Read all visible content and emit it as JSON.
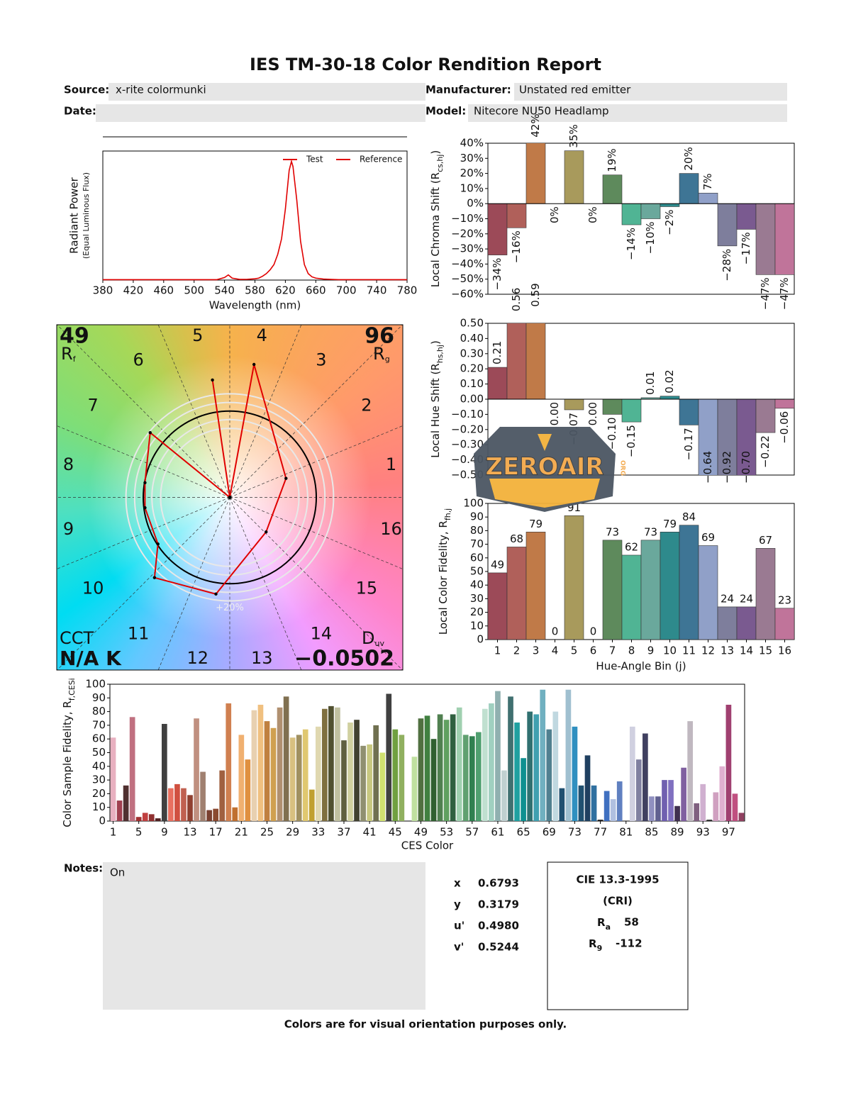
{
  "header": {
    "title": "IES TM-30-18 Color Rendition Report",
    "source_label": "Source:",
    "source": "x-rite colormunki",
    "manufacturer_label": "Manufacturer:",
    "manufacturer": "Unstated red emitter",
    "date_label": "Date:",
    "model_label": "Model:",
    "model": "Nitecore NU50 Headlamp"
  },
  "chart_data": [
    {
      "type": "line",
      "xlabel": "Wavelength (nm)",
      "ylabel": "Radiant Power",
      "ylabel2": "(Equal Luminous Flux)",
      "legend": "upper right",
      "x": [
        380,
        390,
        400,
        410,
        420,
        430,
        440,
        450,
        460,
        470,
        480,
        490,
        500,
        510,
        520,
        530,
        540,
        545,
        550,
        560,
        570,
        580,
        585,
        590,
        595,
        600,
        605,
        610,
        615,
        620,
        625,
        628,
        630,
        635,
        640,
        645,
        650,
        655,
        660,
        670,
        680,
        690,
        700,
        710,
        720,
        730,
        740,
        750,
        760,
        770,
        780
      ],
      "series": [
        {
          "name": "Test",
          "color": "#e00000",
          "values": [
            0.003,
            0.003,
            0.003,
            0.003,
            0.003,
            0.003,
            0.003,
            0.003,
            0.003,
            0.003,
            0.003,
            0.003,
            0.003,
            0.003,
            0.003,
            0.003,
            0.02,
            0.04,
            0.015,
            0.005,
            0.006,
            0.01,
            0.015,
            0.03,
            0.05,
            0.08,
            0.12,
            0.2,
            0.32,
            0.55,
            0.85,
            0.92,
            0.88,
            0.62,
            0.3,
            0.12,
            0.05,
            0.025,
            0.015,
            0.008,
            0.005,
            0.003,
            0.003,
            0.003,
            0.003,
            0.003,
            0.003,
            0.003,
            0.003,
            0.003,
            0.003
          ]
        },
        {
          "name": "Reference",
          "color": "#e00000",
          "values": [
            null,
            null,
            null,
            null,
            null,
            null,
            null,
            null,
            null,
            null,
            null,
            null,
            null,
            null,
            null,
            null,
            null,
            null,
            null,
            null,
            null,
            null,
            null,
            null,
            null,
            null,
            null,
            null,
            null,
            null,
            null,
            null,
            null,
            null,
            null,
            null,
            null,
            null,
            null,
            null,
            null,
            null,
            null,
            null,
            null,
            null,
            null,
            null,
            null,
            null,
            null
          ]
        }
      ],
      "xlim": [
        380,
        780
      ],
      "xticks": [
        380,
        420,
        460,
        500,
        540,
        580,
        620,
        660,
        700,
        740,
        780
      ],
      "ylim": [
        0,
        1
      ]
    },
    {
      "type": "vector",
      "rf": 49,
      "rf_label": "R",
      "rf_sub": "f",
      "rg": 96,
      "rg_label": "R",
      "rg_sub": "g",
      "cct_label": "CCT",
      "cct": "N/A K",
      "duv_label": "D",
      "duv_sub": "uv",
      "duv": {
        "value": -0.0502,
        "label": "−0.0502"
      },
      "circle_label": "+20%",
      "bins": [
        "1",
        "2",
        "3",
        "4",
        "5",
        "6",
        "7",
        "8",
        "9",
        "10",
        "11",
        "12",
        "13",
        "14",
        "15",
        "16"
      ],
      "x": [
        0,
        -0.2,
        0,
        0.28,
        0.65,
        0.42,
        -0.16,
        -0.87,
        -0.83,
        -0.98,
        -0.98,
        -0.92,
        0
      ],
      "y": [
        0,
        1.36,
        0,
        1.54,
        0.22,
        -0.4,
        -1.12,
        -0.93,
        -0.54,
        -0.12,
        0.17,
        0.75,
        0
      ],
      "color": "#e00000",
      "xlim": [
        -2,
        2
      ],
      "ylim": [
        -2,
        2
      ]
    },
    {
      "type": "bar",
      "ylabel": "Local Chroma Shift (R",
      "ylabel_sub": "cs,hj",
      "ylabel_end": ")",
      "values": [
        -34,
        -16,
        42,
        0,
        35,
        0,
        19,
        -14,
        -10,
        -2,
        20,
        7,
        -28,
        -17,
        -47,
        -47
      ],
      "value_labels": [
        "−34%",
        "−16%",
        "42%",
        "0%",
        "35%",
        "0%",
        "19%",
        "−14%",
        "−10%",
        "−2%",
        "20%",
        "7%",
        "−28%",
        "−17%",
        "−47%",
        "−47%"
      ],
      "colors": [
        "#9c4a58",
        "#b0605a",
        "#c07a48",
        "#c09a52",
        "#a89a5c",
        "#8a9a5a",
        "#5e8a5c",
        "#50b494",
        "#6aa89c",
        "#2e8a8c",
        "#3e7595",
        "#90a0c8",
        "#7e7e9c",
        "#7a5a90",
        "#9a7a92",
        "#c0749a"
      ],
      "ylim": [
        -60,
        40
      ],
      "yticks": [
        {
          "value": 40,
          "label": "40%"
        },
        {
          "value": 30,
          "label": "30%"
        },
        {
          "value": 20,
          "label": "20%"
        },
        {
          "value": 10,
          "label": "10%"
        },
        {
          "value": 0,
          "label": "0%"
        },
        {
          "value": -10,
          "label": "−10%"
        },
        {
          "value": -20,
          "label": "−20%"
        },
        {
          "value": -30,
          "label": "−30%"
        },
        {
          "value": -40,
          "label": "−40%"
        },
        {
          "value": -50,
          "label": "−50%"
        },
        {
          "value": -60,
          "label": "−60%"
        }
      ]
    },
    {
      "type": "bar",
      "ylabel": "Local Hue Shift (R",
      "ylabel_sub": "hs,hj",
      "ylabel_end": ")",
      "values": [
        0.21,
        0.56,
        0.59,
        0,
        -0.07,
        0,
        -0.1,
        -0.15,
        0.01,
        0.02,
        -0.17,
        -0.64,
        -0.92,
        -0.7,
        -0.22,
        -0.06
      ],
      "value_labels": [
        "0.21",
        "0.56",
        "0.59",
        "0.00",
        "−0.07",
        "0.00",
        "−0.10",
        "−0.15",
        "0.01",
        "0.02",
        "−0.17",
        "−0.64",
        "−0.92",
        "−0.70",
        "−0.22",
        "−0.06"
      ],
      "colors": [
        "#9c4a58",
        "#b0605a",
        "#c07a48",
        "#c09a52",
        "#a89a5c",
        "#8a9a5a",
        "#5e8a5c",
        "#50b494",
        "#6aa89c",
        "#2e8a8c",
        "#3e7595",
        "#90a0c8",
        "#7e7e9c",
        "#7a5a90",
        "#9a7a92",
        "#c0749a"
      ],
      "ylim": [
        -0.5,
        0.5
      ],
      "yticks": [
        {
          "value": 0.5,
          "label": "0.50"
        },
        {
          "value": 0.4,
          "label": "0.40"
        },
        {
          "value": 0.3,
          "label": "0.30"
        },
        {
          "value": 0.2,
          "label": "0.20"
        },
        {
          "value": 0.1,
          "label": "0.10"
        },
        {
          "value": 0,
          "label": "0.00"
        },
        {
          "value": -0.1,
          "label": "−0.10"
        },
        {
          "value": -0.2,
          "label": "−0.20"
        },
        {
          "value": -0.3,
          "label": "−0.30"
        },
        {
          "value": -0.4,
          "label": "−0.40"
        },
        {
          "value": -0.5,
          "label": "−0.50"
        }
      ]
    },
    {
      "type": "bar",
      "ylabel": "Local Color Fidelity, R",
      "ylabel_sub": "fh,j",
      "xlabel": "Hue-Angle Bin (j)",
      "categories": [
        "1",
        "2",
        "3",
        "4",
        "5",
        "6",
        "7",
        "8",
        "9",
        "10",
        "11",
        "12",
        "13",
        "14",
        "15",
        "16"
      ],
      "values": [
        49,
        68,
        79,
        0,
        91,
        0,
        73,
        62,
        73,
        79,
        84,
        69,
        24,
        24,
        67,
        23
      ],
      "colors": [
        "#9c4a58",
        "#b0605a",
        "#c07a48",
        "#c09a52",
        "#a89a5c",
        "#8a9a5a",
        "#5e8a5c",
        "#50b494",
        "#6aa89c",
        "#2e8a8c",
        "#3e7595",
        "#90a0c8",
        "#7e7e9c",
        "#7a5a90",
        "#9a7a92",
        "#c0749a"
      ],
      "ylim": [
        0,
        100
      ],
      "yticks": [
        0,
        10,
        20,
        30,
        40,
        50,
        60,
        70,
        80,
        90,
        100
      ]
    },
    {
      "type": "bar",
      "ylabel": "Color Sample Fidelity, R",
      "ylabel_sub": "f,CESi",
      "xlabel": "CES Color",
      "categories": [
        "1",
        null,
        null,
        null,
        "5",
        null,
        null,
        null,
        "9",
        null,
        null,
        null,
        "13",
        null,
        null,
        null,
        "17",
        null,
        null,
        null,
        "21",
        null,
        null,
        null,
        "25",
        null,
        null,
        null,
        "29",
        null,
        null,
        null,
        "33",
        null,
        null,
        null,
        "37",
        null,
        null,
        null,
        "41",
        null,
        null,
        null,
        "45",
        null,
        null,
        null,
        "49",
        null,
        null,
        null,
        "53",
        null,
        null,
        null,
        "57",
        null,
        null,
        null,
        "61",
        null,
        null,
        null,
        "65",
        null,
        null,
        null,
        "69",
        null,
        null,
        null,
        "73",
        null,
        null,
        null,
        "77",
        null,
        null,
        null,
        "81",
        null,
        null,
        null,
        "85",
        null,
        null,
        null,
        "89",
        null,
        null,
        null,
        "93",
        null,
        null,
        null,
        "97",
        null,
        null
      ],
      "values": [
        61,
        15,
        26,
        76,
        3,
        6,
        5,
        2,
        71,
        24,
        27,
        24,
        19,
        75,
        36,
        8,
        9,
        37,
        86,
        10,
        63,
        45,
        81,
        85,
        73,
        68,
        83,
        91,
        61,
        63,
        67,
        23,
        69,
        82,
        84,
        83,
        59,
        72,
        74,
        55,
        56,
        70,
        50,
        93,
        67,
        63,
        0,
        47,
        75,
        77,
        60,
        78,
        74,
        78,
        83,
        63,
        62,
        65,
        82,
        86,
        95,
        37,
        91,
        72,
        46,
        80,
        78,
        96,
        67,
        80,
        24,
        96,
        69,
        26,
        48,
        26,
        1,
        22,
        16,
        29,
        0,
        69,
        45,
        64,
        18,
        18,
        30,
        30,
        11,
        39,
        73,
        13,
        27,
        1,
        21,
        40,
        85,
        20,
        6
      ],
      "colors": [
        "#e8b0c0",
        "#a04050",
        "#503030",
        "#c07080",
        "#a03030",
        "#c04040",
        "#903030",
        "#502020",
        "#404040",
        "#e87060",
        "#d05040",
        "#c06050",
        "#904030",
        "#c09080",
        "#a08070",
        "#7a4030",
        "#8a4a30",
        "#a06040",
        "#d08050",
        "#c07030",
        "#f0b070",
        "#e09040",
        "#e8d0b0",
        "#f0c080",
        "#c08040",
        "#d0a050",
        "#b09070",
        "#807050",
        "#d8c080",
        "#a09060",
        "#e0c870",
        "#c0a030",
        "#e0d8b0",
        "#807040",
        "#505030",
        "#c0c0a0",
        "#606040",
        "#d0d0a0",
        "#404030",
        "#909070",
        "#c8c880",
        "#707050",
        "#d0e070",
        "#404040",
        "#70a040",
        "#90b060",
        "#c0d0a0",
        "#c0e0a0",
        "#507040",
        "#408040",
        "#306030",
        "#508050",
        "#60a060",
        "#306040",
        "#a0d0b0",
        "#60a070",
        "#308050",
        "#50a070",
        "#c0e0d0",
        "#a0d0c0",
        "#90b0b0",
        "#c0d0d0",
        "#407070",
        "#20a0a0",
        "#109090",
        "#307070",
        "#40a0b0",
        "#70b0c0",
        "#508090",
        "#c0d8e0",
        "#205070",
        "#a0c0d0",
        "#3090c0",
        "#205070",
        "#204060",
        "#3070a0",
        "#202020",
        "#4070c0",
        "#b0c0e0",
        "#6080c0",
        "#e0e0e0",
        "#d0d0e0",
        "#8080a0",
        "#404060",
        "#9090c0",
        "#606090",
        "#7060b0",
        "#8070c0",
        "#403050",
        "#8060a0",
        "#c0b8c0",
        "#806080",
        "#d0b0d0",
        "#303030",
        "#d0a0c0",
        "#e0b0d0",
        "#a04070",
        "#c05080",
        "#904060"
      ],
      "ylim": [
        0,
        100
      ],
      "yticks": [
        0,
        10,
        20,
        30,
        40,
        50,
        60,
        70,
        80,
        90,
        100
      ]
    }
  ],
  "notes": {
    "label": "Notes:",
    "text": "On"
  },
  "chromaticity": {
    "rows": [
      [
        "x",
        "0.6793"
      ],
      [
        "y",
        "0.3179"
      ],
      [
        "u'",
        "0.4980"
      ],
      [
        "v'",
        "0.5244"
      ]
    ]
  },
  "cri": {
    "title": "CIE 13.3-1995",
    "subtitle": "(CRI)",
    "ra_label": "R",
    "ra_sub": "a",
    "ra": 58,
    "r9_label": "R",
    "r9_sub": "9",
    "r9": -112
  },
  "footer": "Colors are for visual orientation purposes only.",
  "watermark": {
    "text": "ZEROAIR",
    "sub": "ORG"
  }
}
